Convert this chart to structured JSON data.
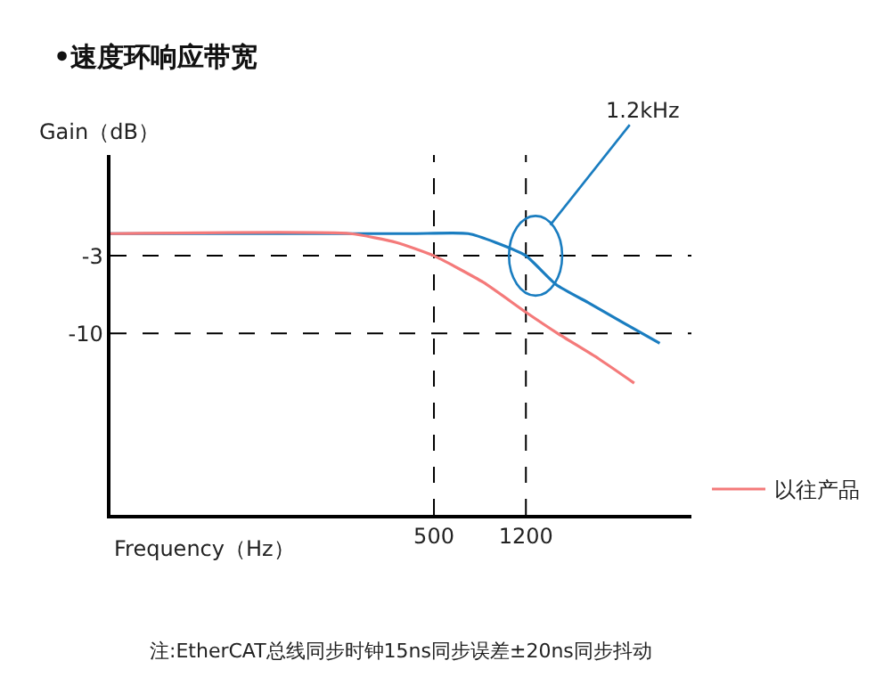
{
  "chart_data": {
    "type": "line",
    "title": "•速度环响应带宽",
    "xlabel": "Frequency（Hz）",
    "ylabel": "Gain（dB）",
    "log": "x",
    "xlim": [
      23,
      5800
    ],
    "ylim": [
      -26.4,
      6.1
    ],
    "xticks": [
      500,
      1200
    ],
    "yticks": [
      -3,
      -10
    ],
    "grid": false,
    "legend": "bottom right",
    "marker": "none",
    "line_style": "solid",
    "series": [
      {
        "color": "#1a7dc0",
        "x": [
          23,
          400,
          693,
          900,
          1200,
          1600,
          2200,
          3000,
          4290
        ],
        "values": [
          -1,
          -1,
          -1,
          -1.8,
          -3,
          -5.6,
          -7.3,
          -9.0,
          -10.9
        ]
      },
      {
        "name": "以往产品",
        "color": "#f47a7a",
        "x": [
          23,
          225,
          350,
          500,
          800,
          1200,
          1620,
          2400,
          3365
        ],
        "values": [
          -1,
          -1,
          -1.8,
          -3,
          -5.4,
          -8.1,
          -10,
          -12.3,
          -14.5
        ]
      }
    ],
    "ref_lines": [
      {
        "axis": "y",
        "value": -3,
        "color": "#000000",
        "line_style": "dashed"
      },
      {
        "axis": "y",
        "value": -10,
        "color": "#000000",
        "line_style": "dashed"
      },
      {
        "axis": "x",
        "value": 500,
        "color": "#000000",
        "line_style": "dashed"
      },
      {
        "axis": "x",
        "value": 1200,
        "color": "#000000",
        "line_style": "dashed"
      }
    ],
    "annotations": [
      {
        "text": "1.2kHz",
        "x": 1200,
        "y": -3
      },
      "注:EtherCAT总线同步时钟15ns同步误差±20ns同步抖动"
    ]
  }
}
